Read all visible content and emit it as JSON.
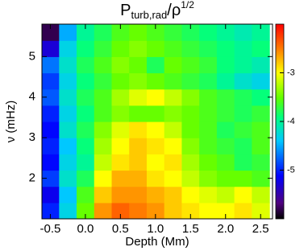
{
  "chart_data": {
    "type": "heatmap",
    "title": [
      "P",
      "turb,rad",
      "/ρ",
      "1/2"
    ],
    "xlabel": "Depth (Mm)",
    "ylabel": "ν (mHz)",
    "x": [
      -0.5,
      -0.25,
      0,
      0.25,
      0.5,
      0.75,
      1.0,
      1.25,
      1.5,
      1.75,
      2.0,
      2.25,
      2.5
    ],
    "y": [
      1.2,
      1.6,
      2.0,
      2.4,
      2.8,
      3.2,
      3.6,
      4.0,
      4.4,
      4.8,
      5.2,
      5.6
    ],
    "z": [
      [
        -5.0,
        -4.3,
        -3.5,
        -2.6,
        -2.4,
        -2.5,
        -2.6,
        -2.8,
        -2.9,
        -3.0,
        -3.0,
        -2.9,
        -3.1
      ],
      [
        -5.2,
        -4.4,
        -3.6,
        -2.8,
        -2.6,
        -2.6,
        -2.7,
        -2.8,
        -3.0,
        -3.1,
        -3.2,
        -3.0,
        -3.2
      ],
      [
        -4.9,
        -4.2,
        -3.8,
        -3.0,
        -2.7,
        -2.7,
        -2.9,
        -3.0,
        -3.2,
        -3.4,
        -3.5,
        -3.5,
        -3.6
      ],
      [
        -5.1,
        -4.3,
        -4.0,
        -3.2,
        -2.9,
        -2.8,
        -3.0,
        -2.9,
        -3.3,
        -3.5,
        -3.6,
        -3.8,
        -3.7
      ],
      [
        -5.0,
        -4.4,
        -3.9,
        -3.3,
        -3.0,
        -2.8,
        -2.9,
        -3.0,
        -3.4,
        -3.6,
        -3.7,
        -3.8,
        -3.6
      ],
      [
        -5.1,
        -4.2,
        -3.8,
        -3.4,
        -3.1,
        -2.9,
        -3.0,
        -3.2,
        -3.5,
        -3.6,
        -3.8,
        -3.7,
        -3.6
      ],
      [
        -5.0,
        -4.3,
        -3.9,
        -3.6,
        -3.4,
        -3.5,
        -3.5,
        -3.4,
        -3.5,
        -3.6,
        -3.7,
        -3.8,
        -3.7
      ],
      [
        -4.8,
        -4.2,
        -3.8,
        -3.6,
        -3.3,
        -3.1,
        -3.0,
        -3.2,
        -3.4,
        -3.6,
        -3.7,
        -3.8,
        -3.9
      ],
      [
        -4.9,
        -4.3,
        -3.9,
        -3.7,
        -3.5,
        -3.4,
        -3.5,
        -3.6,
        -3.7,
        -3.8,
        -4.0,
        -4.2,
        -4.3
      ],
      [
        -4.7,
        -4.2,
        -3.8,
        -3.6,
        -3.4,
        -3.5,
        -3.8,
        -3.5,
        -3.6,
        -3.7,
        -3.9,
        -4.0,
        -4.1
      ],
      [
        -5.3,
        -4.3,
        -3.9,
        -3.7,
        -3.5,
        -3.4,
        -3.5,
        -3.6,
        -3.7,
        -3.8,
        -3.9,
        -4.0,
        -3.9
      ],
      [
        -5.8,
        -4.5,
        -4.0,
        -3.8,
        -3.6,
        -3.5,
        -3.6,
        -3.7,
        -3.8,
        -3.9,
        -4.0,
        -4.1,
        -4.0
      ]
    ],
    "xlim": [
      -0.62,
      2.67
    ],
    "xticks": [
      -0.5,
      {
        "value": 0,
        "label": "0.0"
      },
      0.5,
      {
        "value": 1,
        "label": "1.0"
      },
      1.5,
      {
        "value": 2,
        "label": "2.0"
      },
      2.5
    ],
    "ylim": [
      1.0,
      5.8
    ],
    "yticks": [
      2,
      3,
      4,
      5
    ],
    "zlim": [
      -6,
      -2
    ],
    "zticks": [
      -5,
      -4,
      -3
    ]
  }
}
